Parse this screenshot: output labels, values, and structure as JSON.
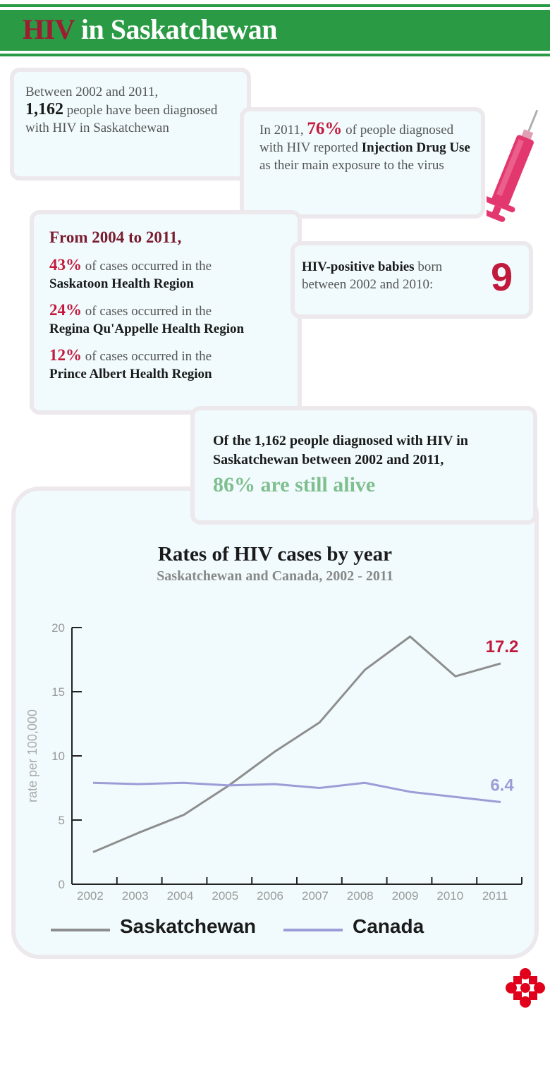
{
  "header": {
    "title_hiv": "HIV",
    "title_rest": " in Saskatchewan"
  },
  "box1": {
    "line1": "Between 2002 and 2011,",
    "count": "1,162",
    "line2": " people have been diagnosed with HIV in Saskatchewan"
  },
  "box2": {
    "pre": "In 2011, ",
    "pct": "76%",
    "mid": " of people diagnosed with HIV reported ",
    "bold": "Injection Drug Use",
    "post": " as their main exposure to the virus"
  },
  "box3": {
    "heading": "From 2004 to 2011,",
    "items": [
      {
        "pct": "43%",
        "text": " of cases occurred in the",
        "region": "Saskatoon Health Region"
      },
      {
        "pct": "24%",
        "text": " of cases occurred in the",
        "region": "Regina Qu'Appelle Health Region"
      },
      {
        "pct": "12%",
        "text": " of cases occurred in the",
        "region": "Prince Albert Health Region"
      }
    ]
  },
  "box4": {
    "bold": "HIV-positive babies",
    "text": " born between 2002 and 2010:",
    "value": "9"
  },
  "box6": {
    "line": "Of the 1,162 people diagnosed with HIV in Saskatchewan between 2002 and 2011,",
    "alive": "86% are still alive"
  },
  "colors": {
    "saskatchewan": "#8e8e8e",
    "canada": "#9b9dd6",
    "accent_red": "#c21a3d",
    "accent_green": "#7fbf8e",
    "banner_green": "#2a9a44"
  },
  "chart_data": {
    "type": "line",
    "title": "Rates of HIV cases by year",
    "subtitle": "Saskatchewan and Canada, 2002 - 2011",
    "ylabel": "rate per 100,000",
    "xlabel": "",
    "x": [
      "2002",
      "2003",
      "2004",
      "2005",
      "2006",
      "2007",
      "2008",
      "2009",
      "2010",
      "2011"
    ],
    "ylim": [
      0,
      20
    ],
    "yticks": [
      0,
      5,
      10,
      15,
      20
    ],
    "grid": false,
    "legend": "bottom",
    "series": [
      {
        "name": "Saskatchewan",
        "values": [
          2.5,
          4.0,
          5.4,
          7.7,
          10.3,
          12.6,
          16.7,
          19.3,
          16.2,
          17.2
        ],
        "end_label": "17.2"
      },
      {
        "name": "Canada",
        "values": [
          7.9,
          7.8,
          7.9,
          7.7,
          7.8,
          7.5,
          7.9,
          7.2,
          6.8,
          6.4
        ],
        "end_label": "6.4"
      }
    ]
  }
}
